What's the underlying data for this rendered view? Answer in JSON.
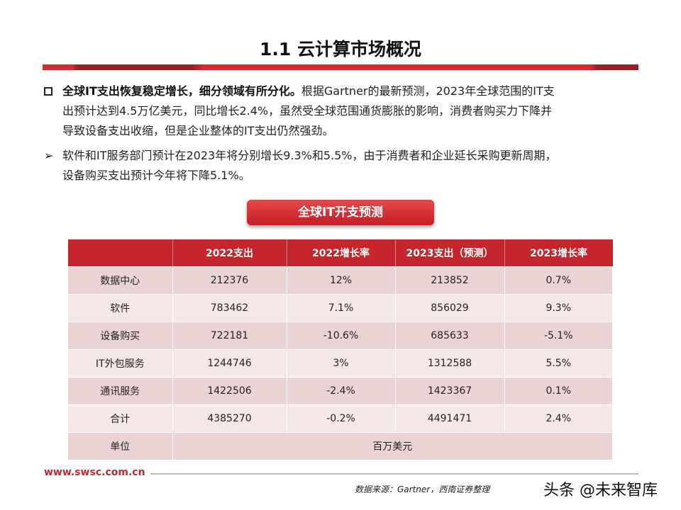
{
  "title": "1.1 云计算市场概况",
  "bullet1": {
    "icon": "checkbox-square-icon",
    "bold": "全球IT支出恢复稳定增长，细分领域有所分化。",
    "line1": "根据Gartner的最新预测，2023年全球范围的IT支",
    "line2": "出预计达到4.5万亿美元，同比增长2.4%，虽然受全球范围通货膨胀的影响，消费者购买力下降并",
    "line3": "导致设备支出收缩，但是企业整体的IT支出仍然强劲。"
  },
  "bullet2": {
    "icon": "arrow-right-icon",
    "line1": "软件和IT服务部门预计在2023年将分别增长9.3%和5.5%，由于消费者和企业延长采购更新周期，",
    "line2": "设备购买支出预计今年将下降5.1%。"
  },
  "table_title": "全球IT开支预测",
  "table": {
    "headers": [
      "",
      "2022支出",
      "2022增长率",
      "2023支出（预测）",
      "2023增长率"
    ],
    "rows": [
      [
        "数据中心",
        "212376",
        "12%",
        "213852",
        "0.7%"
      ],
      [
        "软件",
        "783462",
        "7.1%",
        "856029",
        "9.3%"
      ],
      [
        "设备购买",
        "722181",
        "-10.6%",
        "685633",
        "-5.1%"
      ],
      [
        "IT外包服务",
        "1244746",
        "3%",
        "1312588",
        "5.5%"
      ],
      [
        "通讯服务",
        "1422506",
        "-2.4%",
        "1423367",
        "0.1%"
      ],
      [
        "合计",
        "4385270",
        "-0.2%",
        "4491471",
        "2.4%"
      ]
    ],
    "unit_label": "单位",
    "unit_value": "百万美元"
  },
  "footer": {
    "url": "www.swsc.com.cn",
    "source": "数据来源：Gartner，西南证券整理",
    "watermark": "头条 @未来智库"
  },
  "colors": {
    "accent": "#c5252b"
  }
}
